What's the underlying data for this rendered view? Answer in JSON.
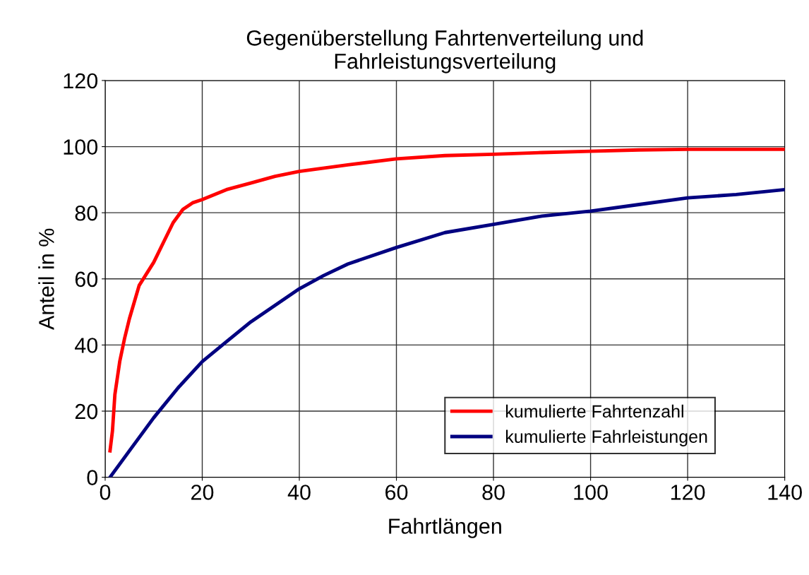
{
  "chart_data": {
    "type": "line",
    "title": "Gegenüberstellung Fahrtenverteilung und\nFahrleistungsverteilung",
    "xlabel": "Fahrtlängen",
    "ylabel": "Anteil in %",
    "xlim": [
      0,
      140
    ],
    "xticks": [
      0,
      20,
      40,
      60,
      80,
      100,
      120,
      140
    ],
    "ylim": [
      0,
      120
    ],
    "yticks": [
      0,
      20,
      40,
      60,
      80,
      100,
      120
    ],
    "grid": true,
    "legend": "bottom right",
    "marker": "none",
    "line_style": "solid",
    "series": [
      {
        "name": "kumulierte Fahrtenzahl",
        "color": "#ff0000",
        "x": [
          1,
          1.5,
          2,
          3,
          4,
          5,
          7,
          10,
          12,
          14,
          16,
          18,
          20,
          25,
          30,
          35,
          40,
          50,
          60,
          70,
          80,
          90,
          100,
          110,
          120,
          140
        ],
        "values": [
          8,
          14,
          25,
          35,
          42,
          48,
          58,
          65,
          71,
          77,
          81,
          83,
          84,
          87,
          89,
          91,
          92.5,
          94.5,
          96.3,
          97.3,
          97.7,
          98.2,
          98.6,
          99,
          99.2,
          99.2
        ]
      },
      {
        "name": "kumulierte Fahrleistungen",
        "color": "#000080",
        "x": [
          1,
          5,
          10,
          15,
          20,
          25,
          30,
          35,
          40,
          45,
          50,
          60,
          70,
          80,
          90,
          100,
          110,
          120,
          130,
          140
        ],
        "values": [
          0,
          8,
          18,
          27,
          35,
          41,
          47,
          52,
          57,
          61,
          64.5,
          69.5,
          74,
          76.5,
          79,
          80.5,
          82.5,
          84.5,
          85.5,
          87
        ]
      }
    ]
  }
}
